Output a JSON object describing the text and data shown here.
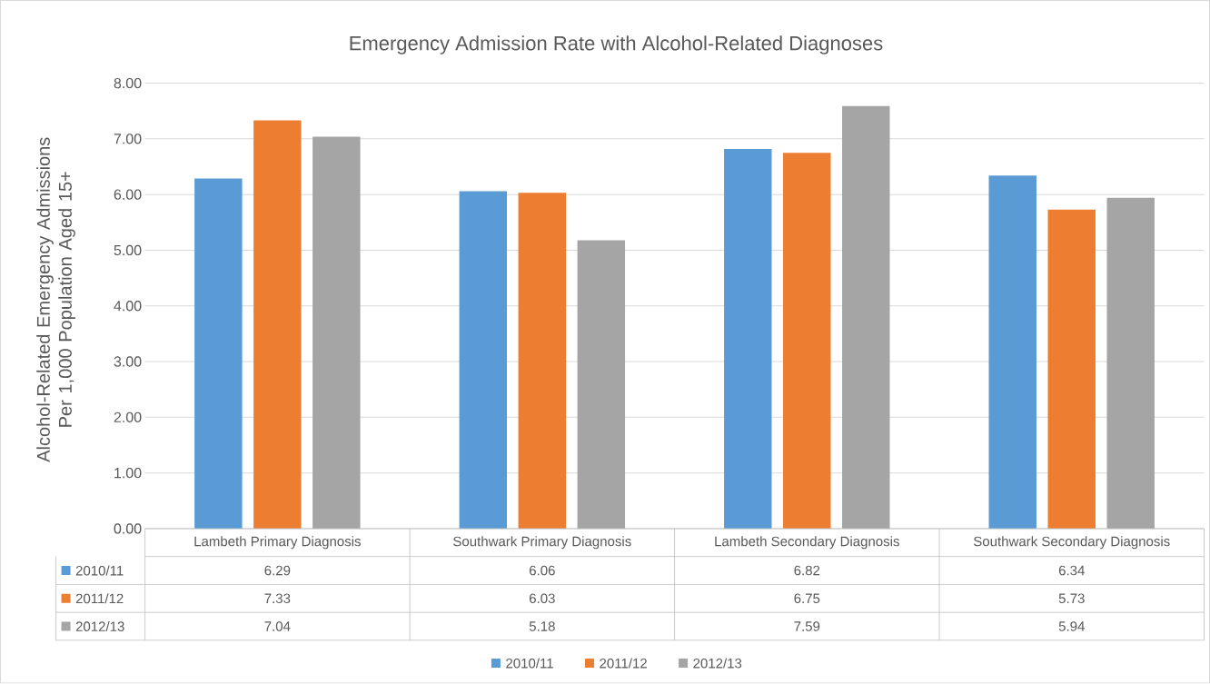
{
  "chart_data": {
    "type": "bar",
    "title": "Emergency Admission Rate with Alcohol-Related Diagnoses",
    "ylabel": "Alcohol-Related Emergency Admissions Per 1,000 Population Aged 15+",
    "categories": [
      "Lambeth Primary Diagnosis",
      "Southwark Primary Diagnosis",
      "Lambeth Secondary Diagnosis",
      "Southwark Secondary Diagnosis"
    ],
    "series": [
      {
        "name": "2010/11",
        "color": "#5b9bd5",
        "values": [
          6.29,
          6.06,
          6.82,
          6.34
        ]
      },
      {
        "name": "2011/12",
        "color": "#ed7d31",
        "values": [
          7.33,
          6.03,
          6.75,
          5.73
        ]
      },
      {
        "name": "2012/13",
        "color": "#a5a5a5",
        "values": [
          7.04,
          5.18,
          7.59,
          5.94
        ]
      }
    ],
    "ylim": [
      0,
      8
    ],
    "yticks": [
      {
        "value": 0,
        "label": "0.00"
      },
      {
        "value": 1,
        "label": "1.00"
      },
      {
        "value": 2,
        "label": "2.00"
      },
      {
        "value": 3,
        "label": "3.00"
      },
      {
        "value": 4,
        "label": "4.00"
      },
      {
        "value": 5,
        "label": "5.00"
      },
      {
        "value": 6,
        "label": "6.00"
      },
      {
        "value": 7,
        "label": "7.00"
      },
      {
        "value": 8,
        "label": "8.00"
      }
    ],
    "grid": "y",
    "legend": "bottom",
    "data_labels": true
  }
}
